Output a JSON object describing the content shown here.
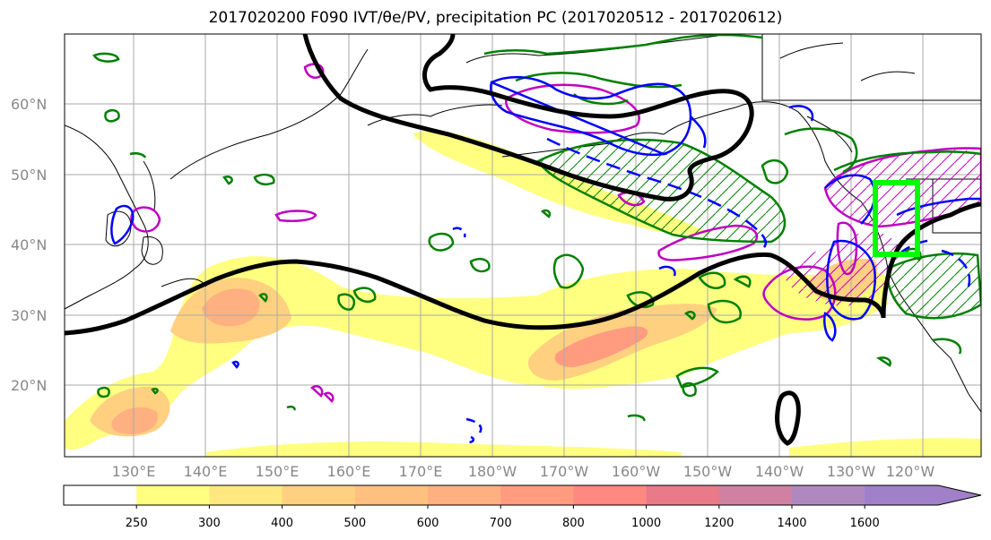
{
  "title": "2017020200 F090 IVT/θe/PV, precipitation PC (2017020512 - 2017020612)",
  "latitude_labels": [
    "60°N",
    "50°N",
    "40°N",
    "30°N",
    "20°N"
  ],
  "longitude_labels": [
    "130°E",
    "140°E",
    "150°E",
    "160°E",
    "170°E",
    "180°W",
    "170°W",
    "160°W",
    "150°W",
    "140°W",
    "130°W",
    "120°W"
  ],
  "colorbar": {
    "ticks": [
      "250",
      "300",
      "400",
      "500",
      "600",
      "700",
      "800",
      "1000",
      "1200",
      "1400",
      "1600"
    ],
    "colors": [
      "#ffffff",
      "#ffff80",
      "#ffe880",
      "#ffd080",
      "#ffc080",
      "#ffb080",
      "#ff9c80",
      "#ff8880",
      "#e87a8a",
      "#d080a0",
      "#b088c0",
      "#a080c8"
    ],
    "extend": "max"
  },
  "legend_colors": {
    "ivt_contour": "#000000",
    "theta_e": "#008000",
    "pv": "#0000ff",
    "precip_pc": "#c000c0",
    "target_box": "#00ff00"
  }
}
